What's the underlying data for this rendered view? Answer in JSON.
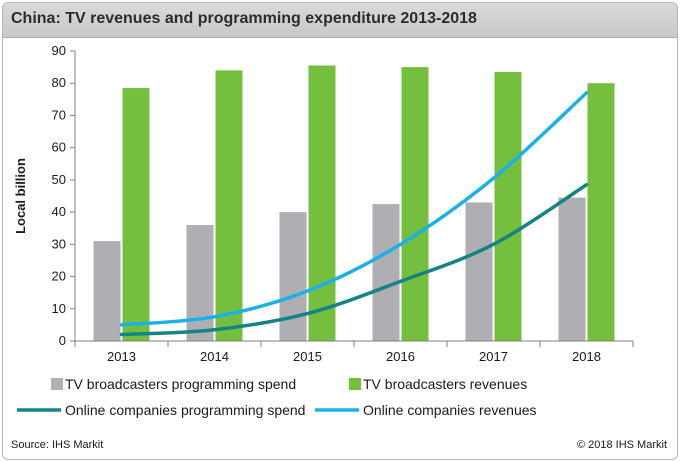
{
  "chart_data": {
    "type": "bar",
    "title": "China: TV revenues and programming expenditure 2013-2018",
    "xlabel": "",
    "ylabel": "Local billion",
    "ylim": [
      0,
      90
    ],
    "yticks": [
      0,
      10,
      20,
      30,
      40,
      50,
      60,
      70,
      80,
      90
    ],
    "categories": [
      "2013",
      "2014",
      "2015",
      "2016",
      "2017",
      "2018"
    ],
    "grid": false,
    "legend_position": "bottom",
    "series": [
      {
        "name": "TV broadcasters programming spend",
        "kind": "bar",
        "color": "#aeaeb3",
        "values": [
          31,
          36,
          40,
          42.5,
          43,
          44.5
        ]
      },
      {
        "name": "TV broadcasters revenues",
        "kind": "bar",
        "color": "#74bf3e",
        "values": [
          78.5,
          84,
          85.5,
          85,
          83.5,
          80
        ]
      },
      {
        "name": "Online companies programming spend",
        "kind": "line",
        "color": "#138483",
        "values": [
          2,
          3.5,
          8.5,
          18.5,
          30,
          48.5
        ]
      },
      {
        "name": "Online companies revenues",
        "kind": "line",
        "color": "#1ab2e6",
        "values": [
          5,
          7.5,
          15.5,
          30,
          50.5,
          77
        ]
      }
    ]
  },
  "footer": {
    "source": "Source: IHS Markit",
    "copyright": "© 2018 IHS Markit"
  }
}
